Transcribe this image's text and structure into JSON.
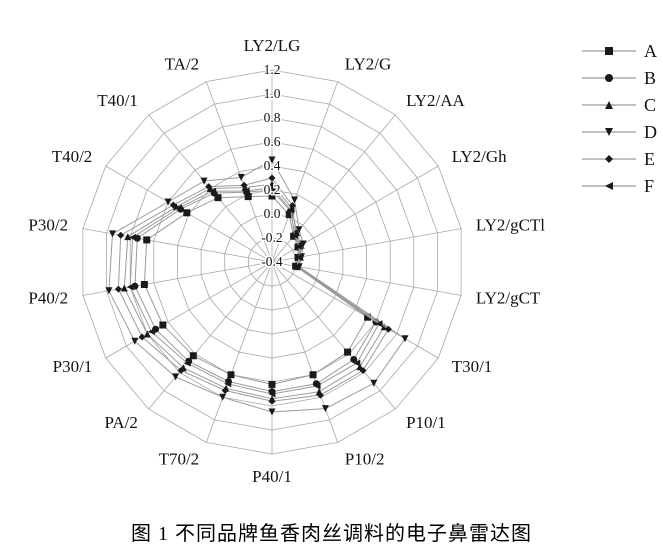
{
  "caption": "图 1  不同品牌鱼香肉丝调料的电子鼻雷达图",
  "chart_data": {
    "type": "radar",
    "title": "",
    "categories": [
      "LY2/LG",
      "LY2/G",
      "LY2/AA",
      "LY2/Gh",
      "LY2/gCTl",
      "LY2/gCT",
      "T30/1",
      "P10/1",
      "P10/2",
      "P40/1",
      "T70/2",
      "PA/2",
      "P30/1",
      "P40/2",
      "P30/2",
      "T40/2",
      "T40/1",
      "TA/2"
    ],
    "ticks": [
      -0.4,
      -0.2,
      0.0,
      0.2,
      0.4,
      0.6,
      0.8,
      1.0,
      1.2
    ],
    "rmin": -0.4,
    "rmax": 1.2,
    "grid": true,
    "legend_position": "top-right",
    "series": [
      {
        "name": "A",
        "marker": "square",
        "values": [
          0.15,
          0.02,
          -0.12,
          -0.15,
          -0.18,
          -0.2,
          0.52,
          0.58,
          0.6,
          0.62,
          0.6,
          0.62,
          0.65,
          0.68,
          0.66,
          0.42,
          0.3,
          0.18
        ]
      },
      {
        "name": "B",
        "marker": "circle",
        "values": [
          0.2,
          0.05,
          -0.1,
          -0.14,
          -0.17,
          -0.19,
          0.6,
          0.66,
          0.68,
          0.68,
          0.66,
          0.68,
          0.72,
          0.76,
          0.74,
          0.48,
          0.35,
          0.22
        ]
      },
      {
        "name": "C",
        "marker": "triangle-up",
        "values": [
          0.25,
          0.08,
          -0.08,
          -0.12,
          -0.16,
          -0.18,
          0.68,
          0.74,
          0.75,
          0.74,
          0.72,
          0.75,
          0.8,
          0.85,
          0.82,
          0.52,
          0.4,
          0.26
        ]
      },
      {
        "name": "D",
        "marker": "triangle-down",
        "values": [
          0.45,
          0.15,
          -0.05,
          -0.1,
          -0.15,
          -0.17,
          0.88,
          0.92,
          0.9,
          0.85,
          0.8,
          0.85,
          0.92,
          0.98,
          0.95,
          0.6,
          0.48,
          0.35
        ]
      },
      {
        "name": "E",
        "marker": "diamond",
        "values": [
          0.3,
          0.1,
          -0.09,
          -0.13,
          -0.16,
          -0.18,
          0.72,
          0.78,
          0.78,
          0.76,
          0.74,
          0.78,
          0.85,
          0.9,
          0.88,
          0.55,
          0.42,
          0.28
        ]
      },
      {
        "name": "F",
        "marker": "triangle-left",
        "values": [
          0.22,
          0.06,
          -0.11,
          -0.14,
          -0.17,
          -0.19,
          0.63,
          0.7,
          0.7,
          0.7,
          0.68,
          0.7,
          0.76,
          0.8,
          0.78,
          0.5,
          0.37,
          0.23
        ]
      }
    ],
    "colors": {
      "line": "#9a9a9a",
      "marker": "#1a1a1a",
      "grid": "#a8a8a8",
      "text": "#111111"
    }
  }
}
